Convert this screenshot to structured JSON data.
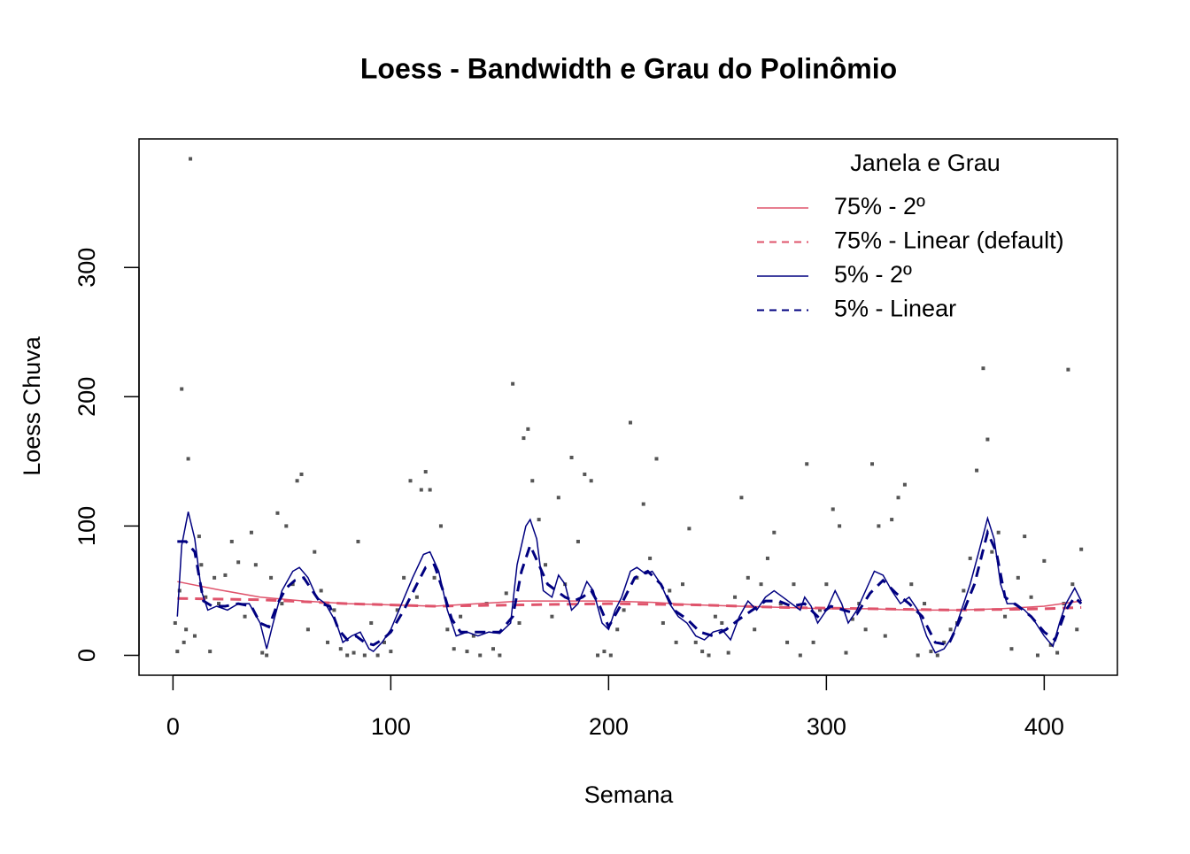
{
  "chart_data": {
    "type": "line",
    "title": "Loess - Bandwidth e Grau do Polinômio",
    "x_label": "Semana",
    "y_label": "Loess Chuva",
    "xlim": [
      -15.6,
      433.6
    ],
    "ylim": [
      -15.4,
      399.4
    ],
    "xticks": [
      0,
      100,
      200,
      300,
      400
    ],
    "yticks": [
      0,
      100,
      200,
      300
    ],
    "legend_title": "Janela e Grau",
    "legend_position": "topright",
    "points": {
      "color": "#555555",
      "x": [
        1,
        2,
        3,
        4,
        5,
        6,
        7,
        8,
        10,
        12,
        13,
        15,
        17,
        19,
        21,
        24,
        27,
        30,
        33,
        36,
        38,
        41,
        43,
        45,
        48,
        50,
        52,
        55,
        57,
        59,
        62,
        65,
        68,
        71,
        74,
        77,
        80,
        83,
        85,
        88,
        91,
        94,
        97,
        100,
        103,
        106,
        109,
        112,
        114,
        116,
        118,
        120,
        123,
        126,
        129,
        132,
        135,
        138,
        141,
        144,
        147,
        150,
        153,
        156,
        159,
        161,
        163,
        165,
        168,
        171,
        174,
        177,
        180,
        183,
        186,
        189,
        192,
        195,
        198,
        201,
        204,
        207,
        210,
        213,
        216,
        219,
        222,
        225,
        228,
        231,
        234,
        237,
        240,
        243,
        246,
        249,
        252,
        255,
        258,
        261,
        264,
        267,
        270,
        273,
        276,
        279,
        282,
        285,
        288,
        291,
        294,
        297,
        300,
        303,
        306,
        309,
        312,
        315,
        318,
        321,
        324,
        327,
        330,
        333,
        336,
        339,
        342,
        345,
        348,
        351,
        354,
        357,
        360,
        363,
        366,
        369,
        372,
        374,
        376,
        379,
        382,
        385,
        388,
        391,
        394,
        397,
        400,
        403,
        406,
        409,
        411,
        413,
        415,
        417
      ],
      "values": [
        25,
        3,
        50,
        206,
        10,
        20,
        152,
        384,
        15,
        92,
        70,
        45,
        3,
        60,
        40,
        62,
        88,
        72,
        30,
        95,
        70,
        2,
        0,
        60,
        110,
        40,
        100,
        55,
        135,
        140,
        20,
        80,
        50,
        10,
        35,
        5,
        0,
        2,
        88,
        0,
        25,
        0,
        10,
        3,
        35,
        60,
        135,
        45,
        128,
        142,
        128,
        60,
        100,
        20,
        5,
        30,
        3,
        15,
        0,
        40,
        5,
        0,
        48,
        210,
        25,
        168,
        175,
        135,
        105,
        70,
        30,
        122,
        55,
        153,
        88,
        140,
        135,
        0,
        3,
        0,
        20,
        35,
        180,
        60,
        117,
        75,
        152,
        25,
        50,
        10,
        55,
        98,
        10,
        3,
        0,
        30,
        25,
        2,
        45,
        122,
        60,
        20,
        55,
        75,
        95,
        40,
        10,
        55,
        0,
        148,
        10,
        35,
        55,
        113,
        100,
        2,
        28,
        40,
        20,
        148,
        100,
        15,
        105,
        122,
        132,
        55,
        0,
        40,
        3,
        0,
        10,
        20,
        25,
        50,
        75,
        143,
        222,
        167,
        80,
        95,
        30,
        5,
        60,
        92,
        45,
        0,
        73,
        8,
        2,
        40,
        221,
        55,
        20,
        82
      ]
    },
    "series": [
      {
        "name": "75% - 2º",
        "color": "#df536b",
        "dash": "solid",
        "width": 1.5,
        "x": [
          2,
          20,
          40,
          60,
          80,
          100,
          120,
          140,
          160,
          180,
          200,
          220,
          240,
          260,
          280,
          300,
          320,
          340,
          360,
          380,
          400,
          417
        ],
        "values": [
          57,
          51,
          45,
          42,
          40,
          39,
          38,
          40,
          42,
          42,
          42,
          41,
          39,
          38,
          37,
          36,
          36,
          35,
          35,
          36,
          38,
          42
        ]
      },
      {
        "name": "75% - Linear (default)",
        "color": "#df536b",
        "dash": "dashed",
        "width": 3,
        "x": [
          2,
          40,
          80,
          120,
          160,
          200,
          240,
          280,
          320,
          360,
          400,
          417
        ],
        "values": [
          44,
          43,
          40,
          38,
          39,
          40,
          39,
          37,
          36,
          35,
          36,
          37
        ]
      },
      {
        "name": "5% - 2º",
        "color": "#000080",
        "dash": "solid",
        "width": 1.5,
        "x": [
          2,
          4,
          7,
          10,
          13,
          16,
          20,
          25,
          30,
          35,
          40,
          43,
          46,
          50,
          55,
          58,
          62,
          66,
          70,
          75,
          78,
          82,
          86,
          90,
          92,
          96,
          100,
          105,
          110,
          115,
          118,
          122,
          126,
          130,
          135,
          140,
          145,
          150,
          155,
          158,
          162,
          164,
          167,
          170,
          174,
          177,
          180,
          183,
          186,
          190,
          193,
          197,
          200,
          203,
          206,
          210,
          213,
          217,
          220,
          224,
          228,
          232,
          236,
          240,
          244,
          248,
          252,
          256,
          260,
          264,
          268,
          272,
          276,
          280,
          284,
          288,
          290,
          293,
          296,
          300,
          304,
          307,
          310,
          314,
          318,
          322,
          326,
          330,
          334,
          338,
          342,
          346,
          350,
          354,
          358,
          362,
          366,
          370,
          374,
          377,
          380,
          383,
          387,
          391,
          395,
          400,
          404,
          407,
          410,
          414,
          417
        ],
        "values": [
          30,
          85,
          111,
          90,
          50,
          35,
          38,
          35,
          40,
          40,
          25,
          5,
          25,
          50,
          65,
          68,
          60,
          45,
          40,
          25,
          10,
          15,
          18,
          5,
          3,
          10,
          20,
          40,
          60,
          78,
          80,
          65,
          35,
          15,
          18,
          15,
          18,
          17,
          25,
          70,
          100,
          105,
          90,
          50,
          45,
          62,
          55,
          35,
          40,
          57,
          50,
          25,
          20,
          35,
          45,
          65,
          68,
          63,
          65,
          55,
          40,
          30,
          25,
          15,
          12,
          18,
          20,
          12,
          30,
          42,
          35,
          45,
          50,
          45,
          40,
          35,
          45,
          38,
          25,
          35,
          50,
          40,
          25,
          35,
          50,
          65,
          62,
          50,
          40,
          45,
          35,
          15,
          2,
          5,
          15,
          35,
          55,
          80,
          106,
          90,
          55,
          40,
          40,
          35,
          28,
          15,
          7,
          25,
          40,
          52,
          42
        ]
      },
      {
        "name": "5% - Linear",
        "color": "#000080",
        "dash": "dashed",
        "width": 3,
        "x": [
          2,
          6,
          10,
          14,
          18,
          24,
          30,
          36,
          40,
          44,
          48,
          52,
          56,
          60,
          64,
          68,
          72,
          76,
          80,
          84,
          88,
          92,
          96,
          100,
          106,
          112,
          116,
          120,
          124,
          128,
          132,
          138,
          144,
          150,
          156,
          160,
          164,
          168,
          172,
          176,
          180,
          184,
          188,
          192,
          196,
          200,
          206,
          212,
          218,
          224,
          230,
          236,
          242,
          248,
          254,
          260,
          266,
          272,
          278,
          284,
          290,
          296,
          302,
          308,
          314,
          320,
          326,
          332,
          338,
          344,
          350,
          356,
          362,
          368,
          374,
          378,
          382,
          388,
          394,
          400,
          405,
          410,
          414,
          417
        ],
        "values": [
          88,
          88,
          80,
          42,
          38,
          38,
          40,
          38,
          25,
          22,
          40,
          52,
          58,
          60,
          50,
          40,
          38,
          20,
          12,
          15,
          10,
          8,
          12,
          18,
          35,
          55,
          68,
          70,
          50,
          28,
          18,
          18,
          18,
          18,
          30,
          65,
          85,
          70,
          55,
          50,
          45,
          42,
          45,
          50,
          38,
          22,
          40,
          60,
          65,
          55,
          35,
          28,
          18,
          15,
          20,
          28,
          35,
          42,
          42,
          38,
          40,
          30,
          38,
          35,
          32,
          48,
          58,
          48,
          40,
          30,
          10,
          8,
          30,
          55,
          95,
          80,
          45,
          38,
          30,
          18,
          12,
          35,
          45,
          40
        ]
      }
    ]
  }
}
